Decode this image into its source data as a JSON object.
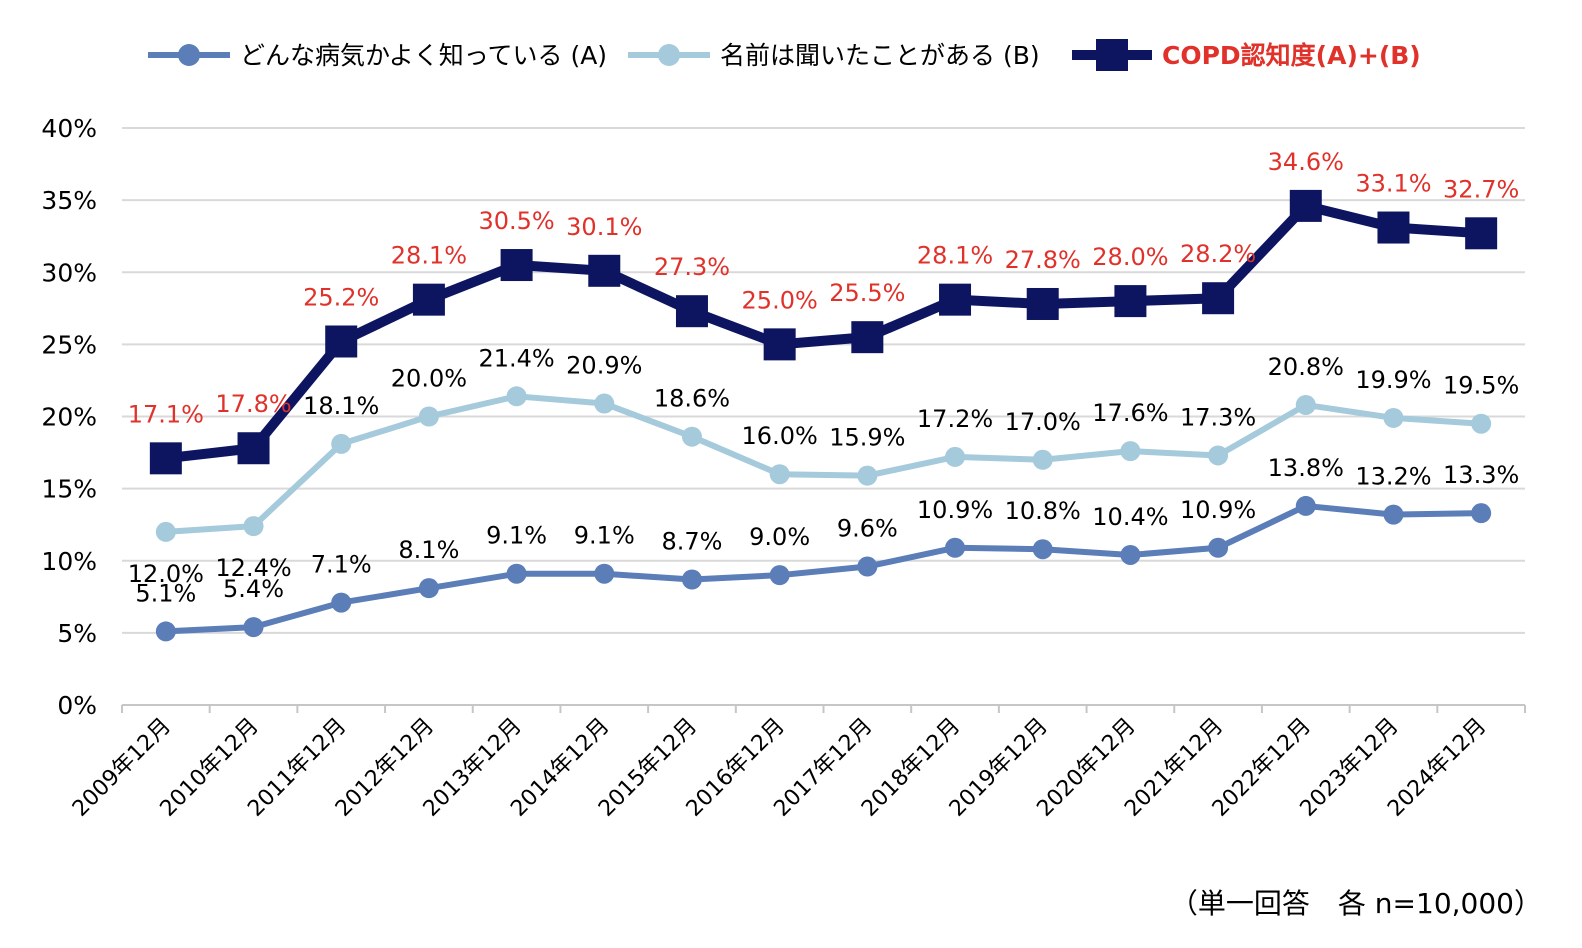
{
  "chart_data": {
    "type": "line",
    "title": "",
    "categories": [
      "2009年12月",
      "2010年12月",
      "2011年12月",
      "2012年12月",
      "2013年12月",
      "2014年12月",
      "2015年12月",
      "2016年12月",
      "2017年12月",
      "2018年12月",
      "2019年12月",
      "2020年12月",
      "2021年12月",
      "2022年12月",
      "2023年12月",
      "2024年12月"
    ],
    "y_ticks": [
      "0%",
      "5%",
      "10%",
      "15%",
      "20%",
      "25%",
      "30%",
      "35%",
      "40%"
    ],
    "ylim": [
      0,
      40
    ],
    "grid": true,
    "legend_position": "top",
    "series": [
      {
        "name": "どんな病気かよく知っている (A)",
        "color": "#5b7db8",
        "marker": "circle",
        "values": [
          5.1,
          5.4,
          7.1,
          8.1,
          9.1,
          9.1,
          8.7,
          9.0,
          9.6,
          10.9,
          10.8,
          10.4,
          10.9,
          13.8,
          13.2,
          13.3
        ],
        "labels": [
          "5.1%",
          "5.4%",
          "7.1%",
          "8.1%",
          "9.1%",
          "9.1%",
          "8.7%",
          "9.0%",
          "9.6%",
          "10.9%",
          "10.8%",
          "10.4%",
          "10.9%",
          "13.8%",
          "13.2%",
          "13.3%"
        ]
      },
      {
        "name": "名前は聞いたことがある (B)",
        "color": "#a4cadb",
        "marker": "circle",
        "values": [
          12.0,
          12.4,
          18.1,
          20.0,
          21.4,
          20.9,
          18.6,
          16.0,
          15.9,
          17.2,
          17.0,
          17.6,
          17.3,
          20.8,
          19.9,
          19.5
        ],
        "labels": [
          "12.0%",
          "12.4%",
          "18.1%",
          "20.0%",
          "21.4%",
          "20.9%",
          "18.6%",
          "16.0%",
          "15.9%",
          "17.2%",
          "17.0%",
          "17.6%",
          "17.3%",
          "20.8%",
          "19.9%",
          "19.5%"
        ]
      },
      {
        "name": "COPD認知度(A)+(B)",
        "color": "#0d1560",
        "label_color": "#e0312a",
        "marker": "square",
        "values": [
          17.1,
          17.8,
          25.2,
          28.1,
          30.5,
          30.1,
          27.3,
          25.0,
          25.5,
          28.1,
          27.8,
          28.0,
          28.2,
          34.6,
          33.1,
          32.7
        ],
        "labels": [
          "17.1%",
          "17.8%",
          "25.2%",
          "28.1%",
          "30.5%",
          "30.1%",
          "27.3%",
          "25.0%",
          "25.5%",
          "28.1%",
          "27.8%",
          "28.0%",
          "28.2%",
          "34.6%",
          "33.1%",
          "32.7%"
        ]
      }
    ]
  },
  "note": "（単一回答　各 n=10,000）"
}
